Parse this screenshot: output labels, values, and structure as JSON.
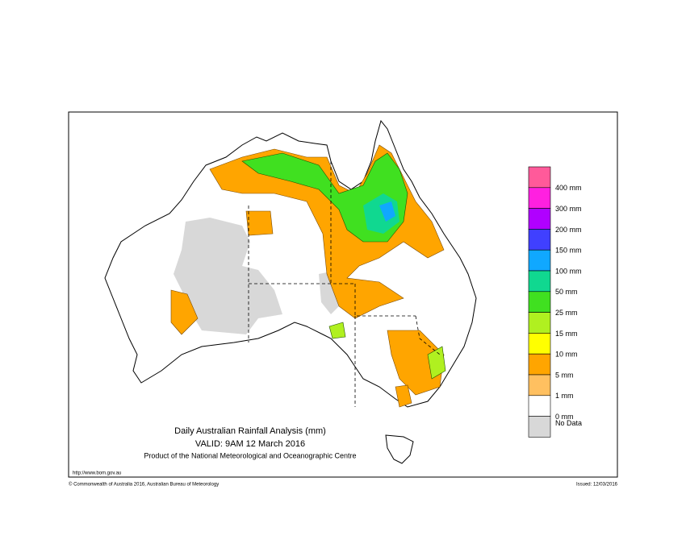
{
  "title": "Daily Australian Rainfall Analysis (mm)",
  "valid": "VALID: 9AM 12 March 2016",
  "product": "Product of the National Meteorological and Oceanographic Centre",
  "url": "http://www.bom.gov.au",
  "copyright": "© Commonwealth of Australia 2016, Australian Bureau of Meteorology",
  "issued": "Issued: 12/03/2016",
  "legend": {
    "labels": [
      "400 mm",
      "300 mm",
      "200 mm",
      "150 mm",
      "100 mm",
      "50 mm",
      "25 mm",
      "15 mm",
      "10 mm",
      "5 mm",
      "1 mm",
      "0 mm",
      "No Data"
    ],
    "colors": [
      "#ff5a9a",
      "#ff20e0",
      "#b000ff",
      "#4040ff",
      "#10a8ff",
      "#10d890",
      "#40e020",
      "#b0f020",
      "#ffff00",
      "#ffa500",
      "#ffc060",
      "#ffffff",
      "#d8d8d8"
    ]
  }
}
